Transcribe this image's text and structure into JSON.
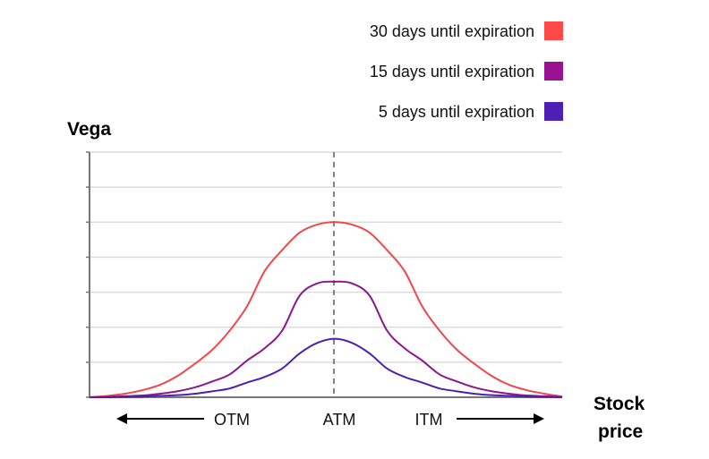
{
  "chart_data": {
    "type": "line",
    "title": "",
    "ylabel": "Vega",
    "xlabel": "Stock price",
    "xlabel_lines": [
      "Stock",
      "price"
    ],
    "x_region_labels": [
      "OTM",
      "ATM",
      "ITM"
    ],
    "reference_line": {
      "x": 0,
      "label": "ATM",
      "style": "dashed"
    },
    "xlim": [
      -7,
      6.5
    ],
    "ylim": [
      0,
      7
    ],
    "grid": true,
    "y_tick_labels": "none",
    "legend_position": "top-right",
    "x": [
      -7,
      -6.5,
      -6,
      -5.5,
      -5,
      -4.5,
      -4,
      -3.5,
      -3,
      -2.5,
      -2,
      -1.5,
      -1,
      -0.5,
      0,
      0.5,
      1,
      1.5,
      2,
      2.5,
      3,
      3.5,
      4,
      4.5,
      5,
      5.5,
      6,
      6.5
    ],
    "series": [
      {
        "name": "30 days until expiration",
        "color": "#f0474a",
        "values": [
          0,
          0.04,
          0.1,
          0.2,
          0.35,
          0.6,
          0.95,
          1.35,
          1.9,
          2.6,
          3.6,
          4.2,
          4.7,
          4.93,
          5,
          4.93,
          4.7,
          4.2,
          3.6,
          2.6,
          1.9,
          1.35,
          0.95,
          0.6,
          0.35,
          0.2,
          0.1,
          0.02
        ]
      },
      {
        "name": "15 days until expiration",
        "color": "#8c168c",
        "values": [
          0,
          0.01,
          0.03,
          0.05,
          0.1,
          0.17,
          0.28,
          0.45,
          0.65,
          1.05,
          1.4,
          1.9,
          2.9,
          3.25,
          3.3,
          3.25,
          2.9,
          1.9,
          1.4,
          1.05,
          0.65,
          0.45,
          0.28,
          0.17,
          0.1,
          0.05,
          0.03,
          0.01
        ]
      },
      {
        "name": "5 days until expiration",
        "color": "#4b1fb0",
        "values": [
          0,
          0,
          0.01,
          0.02,
          0.04,
          0.06,
          0.1,
          0.17,
          0.25,
          0.42,
          0.58,
          0.82,
          1.25,
          1.55,
          1.67,
          1.55,
          1.25,
          0.82,
          0.58,
          0.42,
          0.25,
          0.17,
          0.1,
          0.06,
          0.04,
          0.02,
          0.01,
          0
        ]
      }
    ],
    "legend_colors": [
      "#ff4848",
      "#9a1294",
      "#4d1fb5"
    ]
  }
}
